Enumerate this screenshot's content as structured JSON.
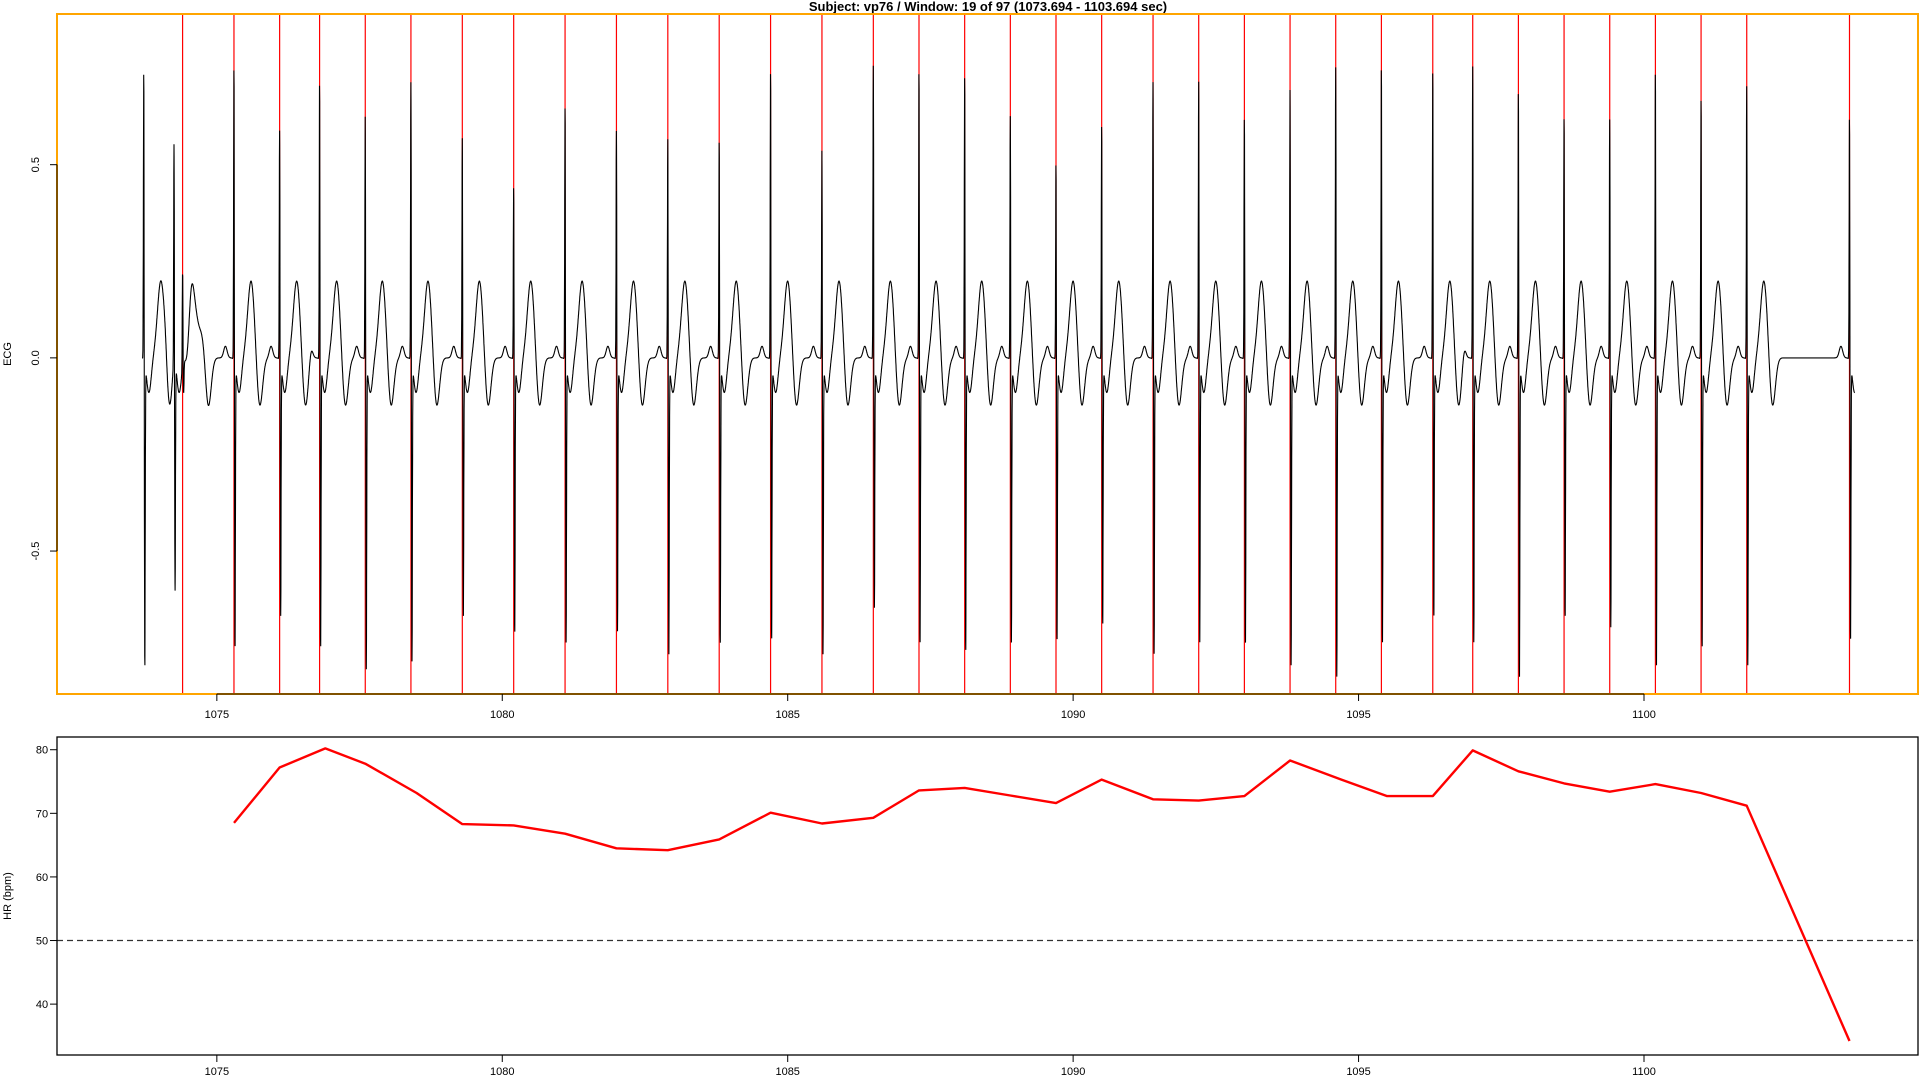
{
  "chart_data": [
    {
      "type": "line",
      "title": "Subject: vp76 / Window: 19 of 97 (1073.694 - 1103.694 sec)",
      "xlabel": "",
      "ylabel": "ECG",
      "xlim": [
        1072.2,
        1104.8
      ],
      "ylim": [
        -0.87,
        0.89
      ],
      "x_ticks": [
        "1075",
        "1080",
        "1085",
        "1090",
        "1095",
        "1100"
      ],
      "y_ticks": [
        "-0.5",
        "0.0",
        "0.5"
      ],
      "frame_color": "#ffa500",
      "signal_color": "#000000",
      "marker_color": "#ff0000",
      "signal_start": 1073.694,
      "signal_end": 1103.694,
      "r_peaks": [
        1074.4,
        1075.3,
        1076.1,
        1076.8,
        1077.6,
        1078.4,
        1079.3,
        1080.2,
        1081.1,
        1082.0,
        1082.9,
        1083.8,
        1084.7,
        1085.6,
        1086.5,
        1087.3,
        1088.1,
        1088.9,
        1089.7,
        1090.5,
        1091.4,
        1092.2,
        1093.0,
        1093.8,
        1094.6,
        1095.4,
        1096.3,
        1097.0,
        1097.8,
        1098.6,
        1099.4,
        1100.2,
        1101.0,
        1101.8,
        1103.6
      ],
      "r_peak_amplitudes": [
        0.25,
        0.78,
        0.62,
        0.74,
        0.66,
        0.75,
        0.6,
        0.47,
        0.68,
        0.62,
        0.6,
        0.59,
        0.77,
        0.57,
        0.79,
        0.77,
        0.76,
        0.66,
        0.53,
        0.63,
        0.75,
        0.75,
        0.65,
        0.73,
        0.79,
        0.78,
        0.77,
        0.79,
        0.72,
        0.65,
        0.65,
        0.77,
        0.7,
        0.74,
        0.65
      ],
      "s_trough_amplitudes": [
        -0.08,
        -0.74,
        -0.66,
        -0.74,
        -0.8,
        -0.78,
        -0.66,
        -0.7,
        -0.73,
        -0.7,
        -0.76,
        -0.73,
        -0.72,
        -0.76,
        -0.64,
        -0.73,
        -0.75,
        -0.73,
        -0.72,
        -0.68,
        -0.76,
        -0.73,
        -0.73,
        -0.79,
        -0.82,
        -0.73,
        -0.66,
        -0.73,
        -0.82,
        -0.66,
        -0.69,
        -0.79,
        -0.74,
        -0.79,
        -0.72
      ]
    },
    {
      "type": "line",
      "title": "",
      "xlabel": "",
      "ylabel": "HR (bpm)",
      "xlim": [
        1072.2,
        1104.8
      ],
      "ylim": [
        32,
        82
      ],
      "x_ticks": [
        "1075",
        "1080",
        "1085",
        "1090",
        "1095",
        "1100"
      ],
      "y_ticks": [
        "40",
        "50",
        "60",
        "70",
        "80"
      ],
      "threshold": 50,
      "line_color": "#ff0000",
      "x": [
        1075.3,
        1076.1,
        1076.9,
        1077.6,
        1078.5,
        1079.3,
        1080.2,
        1081.1,
        1082.0,
        1082.9,
        1083.8,
        1084.7,
        1085.6,
        1086.5,
        1087.3,
        1088.1,
        1088.9,
        1089.7,
        1090.5,
        1091.4,
        1092.2,
        1093.0,
        1093.8,
        1094.7,
        1095.5,
        1096.3,
        1097.0,
        1097.8,
        1098.6,
        1099.4,
        1100.2,
        1101.0,
        1101.8,
        1103.6
      ],
      "series": [
        {
          "values": [
            68.5,
            77.2,
            80.2,
            77.8,
            73.2,
            68.3,
            68.1,
            66.8,
            64.5,
            64.2,
            65.9,
            70.1,
            68.4,
            69.3,
            73.6,
            74.0,
            72.8,
            71.6,
            75.3,
            72.2,
            72.0,
            72.7,
            78.3,
            75.3,
            72.7,
            72.7,
            79.9,
            76.6,
            74.7,
            73.4,
            74.6,
            73.2,
            71.2,
            34.2
          ]
        }
      ]
    }
  ]
}
